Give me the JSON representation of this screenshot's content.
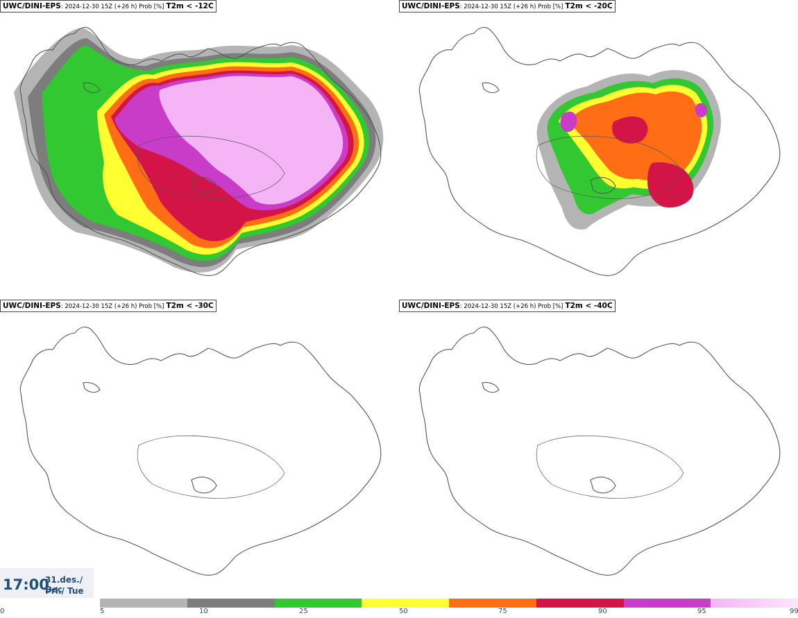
{
  "panels": [
    {
      "model": "UWC/DINI-EPS",
      "meta": ": 2024-12-30 15Z (+26 h) Prob [%]",
      "threshold": "T2m < -12C"
    },
    {
      "model": "UWC/DINI-EPS",
      "meta": ": 2024-12-30 15Z (+26 h) Prob [%]",
      "threshold": "T2m < -20C"
    },
    {
      "model": "UWC/DINI-EPS",
      "meta": ": 2024-12-30 15Z (+26 h) Prob [%]",
      "threshold": "T2m < -30C"
    },
    {
      "model": "UWC/DINI-EPS",
      "meta": ": 2024-12-30 15Z (+26 h) Prob [%]",
      "threshold": "T2m < -40C"
    }
  ],
  "time": {
    "hour": "17:00",
    "date": "31.des./ Dec",
    "weekday": "Þri./ Tue"
  },
  "legend": {
    "ticks": [
      "0",
      "5",
      "10",
      "25",
      "50",
      "75",
      "90",
      "95",
      "99"
    ],
    "colors": [
      "#b4b4b4",
      "#7d7d7d",
      "#32c832",
      "#ffff32",
      "#ff6e14",
      "#d21446",
      "#c83cc8",
      "#f5b4f5"
    ]
  }
}
